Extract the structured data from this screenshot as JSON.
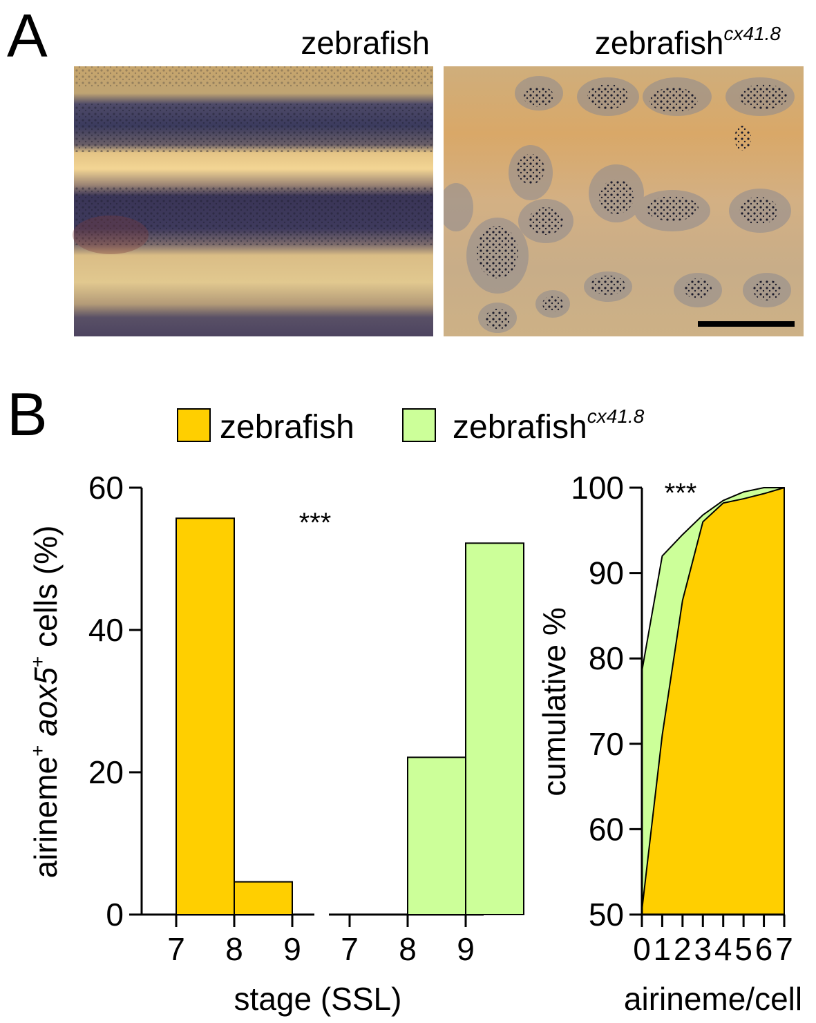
{
  "panels": {
    "a_letter": "A",
    "b_letter": "B"
  },
  "photos": {
    "left_title": "zebrafish",
    "right_title_main": "zebrafish",
    "right_title_sup": "cx41.8"
  },
  "legend": {
    "items": [
      {
        "label": "zebrafish",
        "sup": "",
        "color": "#ffcf00"
      },
      {
        "label": "zebrafish",
        "sup": "cx41.8",
        "color": "#ccff99"
      }
    ]
  },
  "colors": {
    "wildtype": "#ffcf00",
    "mutant": "#ccff99",
    "stroke": "#000000"
  },
  "chart_data": [
    {
      "type": "bar",
      "categories": [
        "7",
        "8",
        "9"
      ],
      "series": [
        {
          "name": "zebrafish",
          "values": [
            55.7,
            4.6,
            0
          ]
        },
        {
          "name": "zebrafish",
          "name_sup": "cx41.8",
          "values": [
            0,
            22.1,
            52.2
          ]
        }
      ],
      "ylabel_pre": "airineme",
      "ylabel_sup1": "+",
      "ylabel_italic": "aox5",
      "ylabel_sup2": "+",
      "ylabel_post": "cells (%)",
      "xlabel": "stage (SSL)",
      "ylim": [
        0,
        60
      ],
      "yticks": [
        0,
        20,
        40,
        60
      ],
      "annotation": "***"
    },
    {
      "type": "area",
      "x": [
        0,
        1,
        2,
        3,
        4,
        5,
        6,
        7
      ],
      "x_tick_labels": [
        "0",
        "1",
        "2",
        "3",
        "4",
        "5",
        "6",
        "7"
      ],
      "series": [
        {
          "name": "zebrafish",
          "sup": "cx41.8",
          "values": [
            78.5,
            92.0,
            94.5,
            96.8,
            98.5,
            99.5,
            100,
            100
          ]
        },
        {
          "name": "zebrafish",
          "values": [
            50.5,
            71.0,
            86.8,
            96.0,
            98.2,
            98.7,
            99.3,
            100
          ]
        }
      ],
      "ylabel": "cumulative %",
      "xlabel": "airineme/cell",
      "ylim": [
        50,
        100
      ],
      "yticks": [
        50,
        60,
        70,
        80,
        90,
        100
      ],
      "annotation": "***"
    }
  ]
}
